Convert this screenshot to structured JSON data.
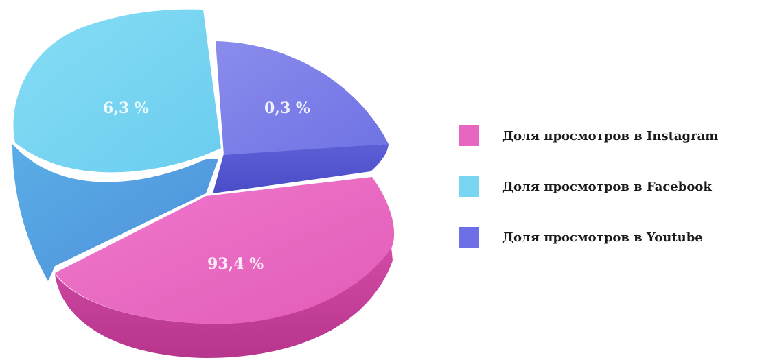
{
  "chart_data": {
    "type": "pie",
    "categories": [
      "Доля просмотров в Instagram",
      "Доля просмотров в Facebook",
      "Доля просмотров в Youtube"
    ],
    "values": [
      93.4,
      6.3,
      0.3
    ],
    "data_labels": [
      "93,4 %",
      "6,3 %",
      "0,3 %"
    ],
    "colors": {
      "instagram": "#E766C2",
      "facebook": "#79D6F2",
      "youtube": "#7478E6"
    },
    "style": "3d-exploded",
    "legend_position": "right"
  },
  "legend": {
    "items": [
      {
        "label": "Доля просмотров в Instagram",
        "color": "#E766C2"
      },
      {
        "label": "Доля просмотров в Facebook",
        "color": "#79D6F2"
      },
      {
        "label": "Доля просмотров в Youtube",
        "color": "#6C6FE6"
      }
    ]
  }
}
